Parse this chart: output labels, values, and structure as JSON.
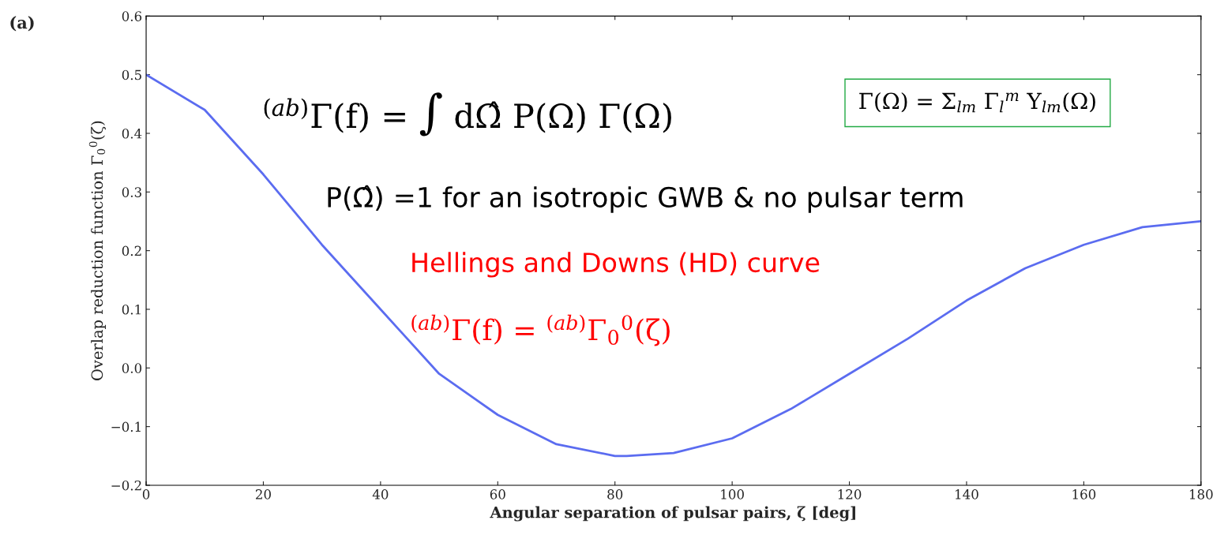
{
  "chart_data": {
    "type": "line",
    "title": "(a)",
    "xlabel": "Angular separation of pulsar pairs, ζ [deg]",
    "ylabel": "Overlap reduction function Γ$_{0}$$^{0}$(ζ)",
    "x": [
      0,
      10,
      20,
      30,
      40,
      50,
      60,
      70,
      80,
      82,
      90,
      100,
      110,
      120,
      130,
      140,
      150,
      160,
      170,
      180
    ],
    "series": [
      {
        "color": "#5b6cf0",
        "values": [
          0.5,
          0.44,
          0.33,
          0.21,
          0.1,
          -0.01,
          -0.08,
          -0.13,
          -0.15,
          -0.15,
          -0.145,
          -0.12,
          -0.07,
          -0.01,
          0.05,
          0.115,
          0.17,
          0.21,
          0.24,
          0.25
        ]
      }
    ],
    "xlim": [
      0,
      180
    ],
    "ylim": [
      -0.2,
      0.6
    ],
    "xticks": [
      0,
      20,
      40,
      60,
      80,
      100,
      120,
      140,
      160,
      180
    ],
    "yticks": [
      {
        "value": -0.2,
        "label": "−0.2"
      },
      {
        "value": -0.1,
        "label": "−0.1"
      },
      {
        "value": 0.0,
        "label": "0.0"
      },
      {
        "value": 0.1,
        "label": "0.1"
      },
      {
        "value": 0.2,
        "label": "0.2"
      },
      {
        "value": 0.3,
        "label": "0.3"
      },
      {
        "value": 0.4,
        "label": "0.4"
      },
      {
        "value": 0.5,
        "label": "0.5"
      },
      {
        "value": 0.6,
        "label": "0.6"
      }
    ],
    "grid": false,
    "legend": false,
    "marker": "none",
    "line_style": "solid",
    "annotations": [
      "$^{(ab)}$Γ(f) = ∫ dΩ̂ P(Ω) Γ(Ω)",
      "Γ(Ω) = Σ$_{lm}$ Γ$_{l}$$^{m}$ Y$_{lm}$(Ω)",
      "P(Ω̂) =1 for an isotropic GWB & no pulsar term",
      "Hellings and Downs (HD) curve",
      "$^{(ab)}$Γ(f) = $^{(ab)}$Γ$_{0}$$^{0}$(ζ)"
    ]
  }
}
